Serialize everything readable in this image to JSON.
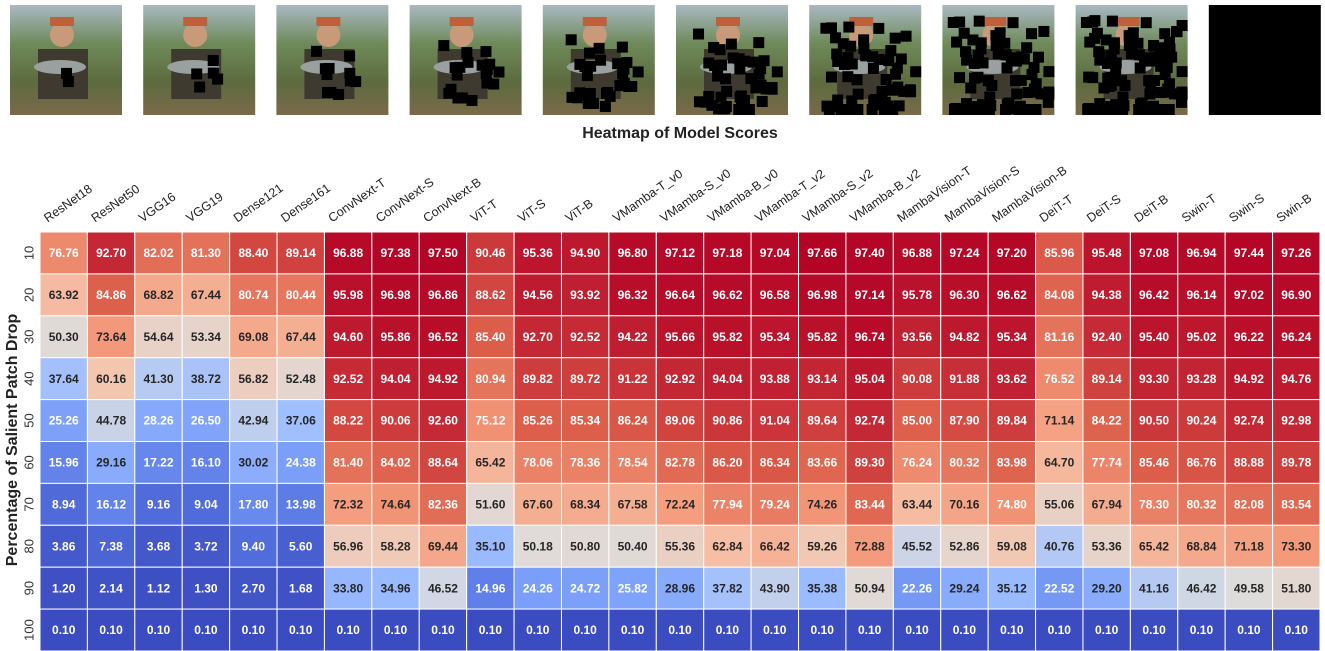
{
  "chart_data": {
    "type": "heatmap",
    "title": "Heatmap of Model Scores",
    "ylabel": "Percentage of Salient Patch Drop",
    "columns": [
      "ResNet18",
      "ResNet50",
      "VGG16",
      "VGG19",
      "Dense121",
      "Dense161",
      "ConvNext-T",
      "ConvNext-S",
      "ConvNext-B",
      "ViT-T",
      "ViT-S",
      "ViT-B",
      "VMamba-T_v0",
      "VMamba-S_v0",
      "VMamba-B_v0",
      "VMamba-T_v2",
      "VMamba-S_v2",
      "VMamba-B_v2",
      "MambaVision-T",
      "MambaVision-S",
      "MambaVision-B",
      "DeiT-T",
      "DeiT-S",
      "DeiT-B",
      "Swin-T",
      "Swin-S",
      "Swin-B"
    ],
    "rows": [
      10,
      20,
      30,
      40,
      50,
      60,
      70,
      80,
      90,
      100
    ],
    "values": [
      [
        76.76,
        92.7,
        82.02,
        81.3,
        88.4,
        89.14,
        96.88,
        97.38,
        97.5,
        90.46,
        95.36,
        94.9,
        96.8,
        97.12,
        97.18,
        97.04,
        97.66,
        97.4,
        96.88,
        97.24,
        97.2,
        85.96,
        95.48,
        97.08,
        96.94,
        97.44,
        97.26
      ],
      [
        63.92,
        84.86,
        68.82,
        67.44,
        80.74,
        80.44,
        95.98,
        96.98,
        96.86,
        88.62,
        94.56,
        93.92,
        96.32,
        96.64,
        96.62,
        96.58,
        96.98,
        97.14,
        95.78,
        96.3,
        96.62,
        84.08,
        94.38,
        96.42,
        96.14,
        97.02,
        96.9
      ],
      [
        50.3,
        73.64,
        54.64,
        53.34,
        69.08,
        67.44,
        94.6,
        95.86,
        96.52,
        85.4,
        92.7,
        92.52,
        94.22,
        95.66,
        95.82,
        95.34,
        95.82,
        96.74,
        93.56,
        94.82,
        95.34,
        81.16,
        92.4,
        95.4,
        95.02,
        96.22,
        96.24
      ],
      [
        37.64,
        60.16,
        41.3,
        38.72,
        56.82,
        52.48,
        92.52,
        94.04,
        94.92,
        80.94,
        89.82,
        89.72,
        91.22,
        92.92,
        94.04,
        93.88,
        93.14,
        95.04,
        90.08,
        91.88,
        93.62,
        76.52,
        89.14,
        93.3,
        93.28,
        94.92,
        94.76
      ],
      [
        25.26,
        44.78,
        28.26,
        26.5,
        42.94,
        37.06,
        88.22,
        90.06,
        92.6,
        75.12,
        85.26,
        85.34,
        86.24,
        89.06,
        90.86,
        91.04,
        89.64,
        92.74,
        85,
        87.9,
        89.84,
        71.14,
        84.22,
        90.5,
        90.24,
        92.74,
        92.98
      ],
      [
        15.96,
        29.16,
        17.22,
        16.1,
        30.02,
        24.38,
        81.4,
        84.02,
        88.64,
        65.42,
        78.06,
        78.36,
        78.54,
        82.78,
        86.2,
        86.34,
        83.66,
        89.3,
        76.24,
        80.32,
        83.98,
        64.7,
        77.74,
        85.46,
        86.76,
        88.88,
        89.78
      ],
      [
        8.94,
        16.12,
        9.16,
        9.04,
        17.8,
        13.98,
        72.32,
        74.64,
        82.36,
        51.6,
        67.6,
        68.34,
        67.58,
        72.24,
        77.94,
        79.24,
        74.26,
        83.44,
        63.44,
        70.16,
        74.8,
        55.06,
        67.94,
        78.3,
        80.32,
        82.08,
        83.54
      ],
      [
        3.86,
        7.38,
        3.68,
        3.72,
        9.4,
        5.6,
        56.96,
        58.28,
        69.44,
        35.1,
        50.18,
        50.8,
        50.4,
        55.36,
        62.84,
        66.42,
        59.26,
        72.88,
        45.52,
        52.86,
        59.08,
        40.76,
        53.36,
        65.42,
        68.84,
        71.18,
        73.3
      ],
      [
        1.2,
        2.14,
        1.12,
        1.3,
        2.7,
        1.68,
        33.8,
        34.96,
        46.52,
        14.96,
        24.26,
        24.72,
        25.82,
        28.96,
        37.82,
        43.9,
        35.38,
        50.94,
        22.26,
        29.24,
        35.12,
        22.52,
        29.2,
        41.16,
        46.42,
        49.58,
        51.8
      ],
      [
        0.1,
        0.1,
        0.1,
        0.1,
        0.1,
        0.1,
        0.1,
        0.1,
        0.1,
        0.1,
        0.1,
        0.1,
        0.1,
        0.1,
        0.1,
        0.1,
        0.1,
        0.1,
        0.1,
        0.1,
        0.1,
        0.1,
        0.1,
        0.1,
        0.1,
        0.1,
        0.1
      ]
    ],
    "value_labels": [
      [
        "76.76",
        "92.70",
        "82.02",
        "81.30",
        "88.40",
        "89.14",
        "96.88",
        "97.38",
        "97.50",
        "90.46",
        "95.36",
        "94.90",
        "96.80",
        "97.12",
        "97.18",
        "97.04",
        "97.66",
        "97.40",
        "96.88",
        "97.24",
        "97.20",
        "85.96",
        "95.48",
        "97.08",
        "96.94",
        "97.44",
        "97.26"
      ],
      [
        "63.92",
        "84.86",
        "68.82",
        "67.44",
        "80.74",
        "80.44",
        "95.98",
        "96.98",
        "96.86",
        "88.62",
        "94.56",
        "93.92",
        "96.32",
        "96.64",
        "96.62",
        "96.58",
        "96.98",
        "97.14",
        "95.78",
        "96.30",
        "96.62",
        "84.08",
        "94.38",
        "96.42",
        "96.14",
        "97.02",
        "96.90"
      ],
      [
        "50.30",
        "73.64",
        "54.64",
        "53.34",
        "69.08",
        "67.44",
        "94.60",
        "95.86",
        "96.52",
        "85.40",
        "92.70",
        "92.52",
        "94.22",
        "95.66",
        "95.82",
        "95.34",
        "95.82",
        "96.74",
        "93.56",
        "94.82",
        "95.34",
        "81.16",
        "92.40",
        "95.40",
        "95.02",
        "96.22",
        "96.24"
      ],
      [
        "37.64",
        "60.16",
        "41.30",
        "38.72",
        "56.82",
        "52.48",
        "92.52",
        "94.04",
        "94.92",
        "80.94",
        "89.82",
        "89.72",
        "91.22",
        "92.92",
        "94.04",
        "93.88",
        "93.14",
        "95.04",
        "90.08",
        "91.88",
        "93.62",
        "76.52",
        "89.14",
        "93.30",
        "93.28",
        "94.92",
        "94.76"
      ],
      [
        "25.26",
        "44.78",
        "28.26",
        "26.50",
        "42.94",
        "37.06",
        "88.22",
        "90.06",
        "92.60",
        "75.12",
        "85.26",
        "85.34",
        "86.24",
        "89.06",
        "90.86",
        "91.04",
        "89.64",
        "92.74",
        "85.00",
        "87.90",
        "89.84",
        "71.14",
        "84.22",
        "90.50",
        "90.24",
        "92.74",
        "92.98"
      ],
      [
        "15.96",
        "29.16",
        "17.22",
        "16.10",
        "30.02",
        "24.38",
        "81.40",
        "84.02",
        "88.64",
        "65.42",
        "78.06",
        "78.36",
        "78.54",
        "82.78",
        "86.20",
        "86.34",
        "83.66",
        "89.30",
        "76.24",
        "80.32",
        "83.98",
        "64.70",
        "77.74",
        "85.46",
        "86.76",
        "88.88",
        "89.78"
      ],
      [
        "8.94",
        "16.12",
        "9.16",
        "9.04",
        "17.80",
        "13.98",
        "72.32",
        "74.64",
        "82.36",
        "51.60",
        "67.60",
        "68.34",
        "67.58",
        "72.24",
        "77.94",
        "79.24",
        "74.26",
        "83.44",
        "63.44",
        "70.16",
        "74.80",
        "55.06",
        "67.94",
        "78.30",
        "80.32",
        "82.08",
        "83.54"
      ],
      [
        "3.86",
        "7.38",
        "3.68",
        "3.72",
        "9.40",
        "5.60",
        "56.96",
        "58.28",
        "69.44",
        "35.10",
        "50.18",
        "50.80",
        "50.40",
        "55.36",
        "62.84",
        "66.42",
        "59.26",
        "72.88",
        "45.52",
        "52.86",
        "59.08",
        "40.76",
        "53.36",
        "65.42",
        "68.84",
        "71.18",
        "73.30"
      ],
      [
        "1.20",
        "2.14",
        "1.12",
        "1.30",
        "2.70",
        "1.68",
        "33.80",
        "34.96",
        "46.52",
        "14.96",
        "24.26",
        "24.72",
        "25.82",
        "28.96",
        "37.82",
        "43.90",
        "35.38",
        "50.94",
        "22.26",
        "29.24",
        "35.12",
        "22.52",
        "29.20",
        "41.16",
        "46.42",
        "49.58",
        "51.80"
      ],
      [
        "0.10",
        "0.10",
        "0.10",
        "0.10",
        "0.10",
        "0.10",
        "0.10",
        "0.10",
        "0.10",
        "0.10",
        "0.10",
        "0.10",
        "0.10",
        "0.10",
        "0.10",
        "0.10",
        "0.10",
        "0.10",
        "0.10",
        "0.10",
        "0.10",
        "0.10",
        "0.10",
        "0.10",
        "0.10",
        "0.10",
        "0.10"
      ]
    ]
  }
}
